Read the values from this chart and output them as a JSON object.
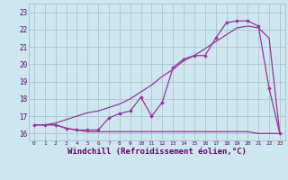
{
  "bg_color": "#cce8ee",
  "line_color": "#993399",
  "grid_color": "#aabbcc",
  "xlabel": "Windchill (Refroidissement éolien,°C)",
  "xlabel_fontsize": 6.5,
  "xtick_labels": [
    "0",
    "1",
    "2",
    "3",
    "4",
    "5",
    "6",
    "7",
    "8",
    "9",
    "10",
    "11",
    "12",
    "13",
    "14",
    "15",
    "16",
    "17",
    "18",
    "19",
    "20",
    "21",
    "22",
    "23"
  ],
  "ytick_labels": [
    "16",
    "17",
    "18",
    "19",
    "20",
    "21",
    "22",
    "23"
  ],
  "ylim": [
    15.6,
    23.5
  ],
  "xlim": [
    -0.5,
    23.5
  ],
  "line1_x": [
    0,
    1,
    2,
    3,
    4,
    5,
    6,
    7,
    8,
    9,
    10,
    11,
    12,
    13,
    14,
    15,
    16,
    17,
    18,
    19,
    20,
    21,
    22,
    23
  ],
  "line1_y": [
    16.5,
    16.5,
    16.5,
    16.3,
    16.2,
    16.1,
    16.1,
    16.1,
    16.1,
    16.1,
    16.1,
    16.1,
    16.1,
    16.1,
    16.1,
    16.1,
    16.1,
    16.1,
    16.1,
    16.1,
    16.1,
    16.0,
    16.0,
    16.0
  ],
  "line2_x": [
    0,
    1,
    2,
    3,
    4,
    5,
    6,
    7,
    8,
    9,
    10,
    11,
    12,
    13,
    14,
    15,
    16,
    17,
    18,
    19,
    20,
    21,
    22,
    23
  ],
  "line2_y": [
    16.5,
    16.5,
    16.6,
    16.8,
    17.0,
    17.2,
    17.3,
    17.5,
    17.7,
    18.0,
    18.4,
    18.8,
    19.3,
    19.7,
    20.2,
    20.5,
    20.9,
    21.3,
    21.7,
    22.1,
    22.2,
    22.1,
    21.5,
    16.0
  ],
  "line3_x": [
    0,
    1,
    2,
    3,
    4,
    5,
    6,
    7,
    8,
    9,
    10,
    11,
    12,
    13,
    14,
    15,
    16,
    17,
    18,
    19,
    20,
    21,
    22,
    23
  ],
  "line3_y": [
    16.5,
    16.5,
    16.5,
    16.3,
    16.2,
    16.2,
    16.2,
    16.9,
    17.15,
    17.3,
    18.1,
    17.0,
    17.8,
    19.8,
    20.3,
    20.5,
    20.5,
    21.5,
    22.4,
    22.5,
    22.5,
    22.2,
    18.6,
    16.0
  ],
  "ytick_vals": [
    16,
    17,
    18,
    19,
    20,
    21,
    22,
    23
  ]
}
